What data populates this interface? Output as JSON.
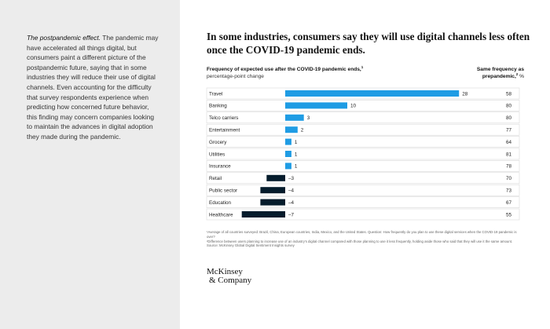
{
  "sidebar": {
    "lead": "The postpandemic effect.",
    "body": "The pandemic may have accelerated all things digital, but consumers paint a different picture of the postpandemic future, saying that in some industries they will reduce their use of digital channels. Even accounting for the difficulty that survey respondents experience when predicting how concerned future behavior, this finding may concern companies looking to maintain the advances in digital adoption they made during the pandemic."
  },
  "exhibit": {
    "title": "In some industries, consumers say they will use digital channels less often once the COVID-19 pandemic ends.",
    "left_header": "Frequency of expected use after the COVID-19 pandemic ends,",
    "left_header_sup": "1",
    "left_header_unit": " percentage-point change",
    "right_header": "Same frequency as prepandemic,",
    "right_header_sup": "2",
    "right_header_unit": " %"
  },
  "chart_data": {
    "type": "bar",
    "title": "In some industries, consumers say they will use digital channels less often once the COVID-19 pandemic ends.",
    "xlabel": "Frequency of expected use after the COVID-19 pandemic ends, percentage-point change",
    "ylabel": "",
    "xlim": [
      -7,
      28
    ],
    "categories": [
      "Travel",
      "Banking",
      "Telco carriers",
      "Entertainment",
      "Grocery",
      "Utilities",
      "Insurance",
      "Retail",
      "Public sector",
      "Education",
      "Healthcare"
    ],
    "series": [
      {
        "name": "Expected change, percentage points",
        "values": [
          28,
          10,
          3,
          2,
          1,
          1,
          1,
          -3,
          -4,
          -4,
          -7
        ]
      },
      {
        "name": "Same frequency as prepandemic, %",
        "values": [
          58,
          80,
          80,
          77,
          64,
          81,
          78,
          70,
          73,
          67,
          55
        ]
      }
    ],
    "value_labels": [
      "28",
      "10",
      "3",
      "2",
      "1",
      "1",
      "1",
      "–3",
      "–4",
      "–4",
      "–7"
    ],
    "colors": {
      "positive": "#1f9ce4",
      "negative": "#051c2c"
    }
  },
  "footnotes": [
    "¹Average of all countries surveyed: Brazil, China, European countries, India, Mexico, and the United States. Question: How frequently do you plan to use these digital services when the COVID-19 pandemic is over?",
    "²Difference between users planning to increase use of an industry’s digital channel compared with those planning to use it less frequently, holding aside those who said that they will use it the same amount.",
    "Source: McKinsey Global Digital Sentiment Insights survey"
  ],
  "logo": {
    "line1": "McKinsey",
    "line2": "& Company"
  }
}
